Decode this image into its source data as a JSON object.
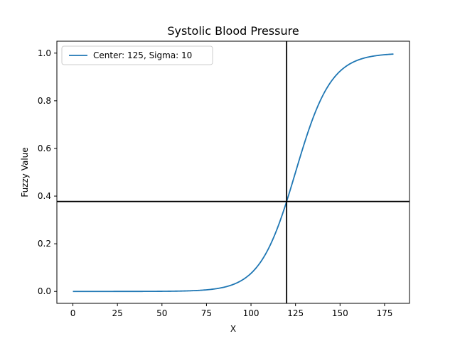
{
  "chart_data": {
    "type": "line",
    "title": "Systolic Blood Pressure",
    "xlabel": "X",
    "ylabel": "Fuzzy Value",
    "xlim": [
      -9,
      189
    ],
    "ylim": [
      -0.05,
      1.05
    ],
    "xticks": [
      0,
      25,
      50,
      75,
      100,
      125,
      150,
      175
    ],
    "yticks": [
      0.0,
      0.2,
      0.4,
      0.6,
      0.8,
      1.0
    ],
    "xtick_labels": [
      "0",
      "25",
      "50",
      "75",
      "100",
      "125",
      "150",
      "175"
    ],
    "ytick_labels": [
      "0.0",
      "0.2",
      "0.4",
      "0.6",
      "0.8",
      "1.0"
    ],
    "grid": false,
    "legend_position": "top-left",
    "series": [
      {
        "name": "Center: 125, Sigma: 10",
        "color": "#1f77b4",
        "function": "sigmoid",
        "center": 125,
        "sigma": 10,
        "x_range": [
          0,
          180
        ]
      }
    ],
    "reference_lines": {
      "vertical_x": 120,
      "horizontal_y": 0.3775,
      "color": "#000000"
    }
  }
}
